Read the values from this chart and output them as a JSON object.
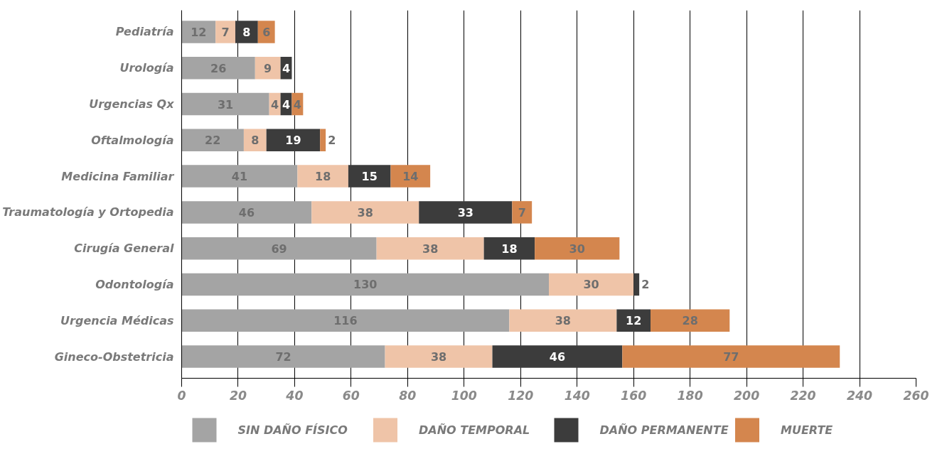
{
  "chart_data": {
    "type": "bar",
    "orientation": "horizontal",
    "stacked": true,
    "categories": [
      "Pediatría",
      "Urología",
      "Urgencias Qx",
      "Oftalmología",
      "Medicina Familiar",
      "Traumatología y Ortopedia",
      "Cirugía General",
      "Odontología",
      "Urgencia Médicas",
      "Gineco-Obstetricia"
    ],
    "series": [
      {
        "name": "SIN DAÑO FÍSICO",
        "color": "#a4a4a4",
        "values": [
          12,
          26,
          31,
          22,
          41,
          46,
          69,
          130,
          116,
          72
        ]
      },
      {
        "name": "DAÑO TEMPORAL",
        "color": "#efc4a8",
        "values": [
          7,
          9,
          4,
          8,
          18,
          38,
          38,
          30,
          38,
          38
        ]
      },
      {
        "name": "DAÑO PERMANENTE",
        "color": "#3c3c3c",
        "values": [
          8,
          4,
          4,
          19,
          15,
          33,
          18,
          2,
          12,
          46
        ]
      },
      {
        "name": "MUERTE",
        "color": "#d4864e",
        "values": [
          6,
          null,
          4,
          2,
          14,
          7,
          30,
          null,
          28,
          77
        ]
      }
    ],
    "xlim": [
      0,
      260
    ],
    "xticks": [
      0,
      20,
      40,
      60,
      80,
      100,
      120,
      140,
      160,
      180,
      200,
      220,
      240,
      260
    ],
    "grid": "x",
    "legend": "bottom",
    "data_labels": true
  }
}
